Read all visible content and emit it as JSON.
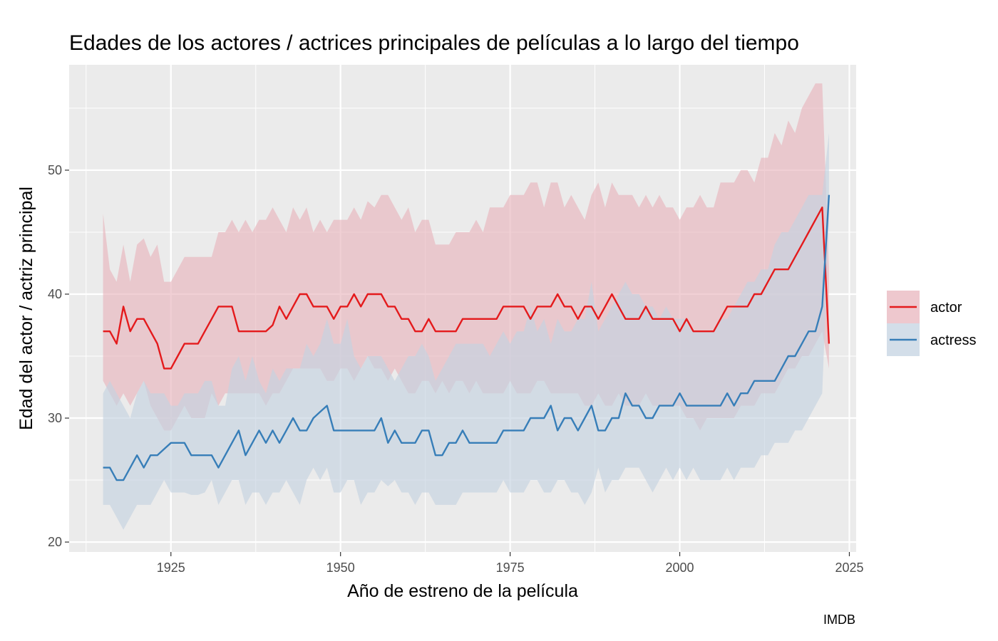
{
  "chart_data": {
    "type": "line",
    "title": "Edades de los actores / actrices principales de películas a lo largo del tiempo",
    "xlabel": "Año de estreno de la película",
    "ylabel": "Edad del actor / actriz principal",
    "caption": "IMDB",
    "xlim": [
      1910,
      2026
    ],
    "ylim": [
      19.2,
      58.5
    ],
    "x_ticks": [
      1925,
      1950,
      1975,
      2000,
      2025
    ],
    "y_ticks": [
      20,
      30,
      40,
      50
    ],
    "grid": true,
    "legend_position": "right",
    "x": [
      1915,
      1916,
      1917,
      1918,
      1919,
      1920,
      1921,
      1922,
      1923,
      1924,
      1925,
      1926,
      1927,
      1928,
      1929,
      1930,
      1931,
      1932,
      1933,
      1934,
      1935,
      1936,
      1937,
      1938,
      1939,
      1940,
      1941,
      1942,
      1943,
      1944,
      1945,
      1946,
      1947,
      1948,
      1949,
      1950,
      1951,
      1952,
      1953,
      1954,
      1955,
      1956,
      1957,
      1958,
      1959,
      1960,
      1961,
      1962,
      1963,
      1964,
      1965,
      1966,
      1967,
      1968,
      1969,
      1970,
      1971,
      1972,
      1973,
      1974,
      1975,
      1976,
      1977,
      1978,
      1979,
      1980,
      1981,
      1982,
      1983,
      1984,
      1985,
      1986,
      1987,
      1988,
      1989,
      1990,
      1991,
      1992,
      1993,
      1994,
      1995,
      1996,
      1997,
      1998,
      1999,
      2000,
      2001,
      2002,
      2003,
      2004,
      2005,
      2006,
      2007,
      2008,
      2009,
      2010,
      2011,
      2012,
      2013,
      2014,
      2015,
      2016,
      2017,
      2018,
      2019,
      2020,
      2021,
      2022
    ],
    "series": [
      {
        "name": "actor",
        "color": "#e41a1c",
        "fill": "#e8b5bd",
        "values": [
          37,
          37,
          36,
          39,
          37,
          38,
          38,
          37,
          36,
          34,
          34,
          35,
          36,
          36,
          36,
          37,
          38,
          39,
          39,
          39,
          37,
          37,
          37,
          37,
          37,
          37.5,
          39,
          38,
          39,
          40,
          40,
          39,
          39,
          39,
          38,
          39,
          39,
          40,
          39,
          40,
          40,
          40,
          39,
          39,
          38,
          38,
          37,
          37,
          38,
          37,
          37,
          37,
          37,
          38,
          38,
          38,
          38,
          38,
          38,
          39,
          39,
          39,
          39,
          38,
          39,
          39,
          39,
          40,
          39,
          39,
          38,
          39,
          39,
          38,
          39,
          40,
          39,
          38,
          38,
          38,
          39,
          38,
          38,
          38,
          38,
          37,
          38,
          37,
          37,
          37,
          37,
          38,
          39,
          39,
          39,
          39,
          40,
          40,
          41,
          42,
          42,
          42,
          43,
          44,
          45,
          46,
          47,
          36
        ],
        "lower": [
          33,
          32,
          31,
          32,
          31,
          32,
          33,
          31,
          30,
          29,
          29,
          30,
          31,
          30,
          30,
          30,
          32,
          31,
          32,
          32,
          32,
          32,
          32,
          32,
          31,
          32,
          32,
          33,
          34,
          34,
          34,
          34,
          34,
          33,
          33,
          34,
          34,
          33,
          34,
          35,
          34,
          34,
          33,
          34,
          33,
          32,
          32,
          33,
          33,
          32,
          33,
          32,
          33,
          33,
          32,
          33,
          32,
          32,
          32,
          32,
          33,
          32,
          32,
          32,
          33,
          33,
          32,
          32,
          32,
          32,
          32,
          31,
          31,
          32,
          31,
          31,
          32,
          31,
          31,
          31,
          32,
          31,
          31,
          31,
          31,
          31,
          30,
          30,
          29,
          30,
          30,
          30,
          30,
          30,
          31,
          31,
          31,
          32,
          32,
          32,
          33,
          34,
          34,
          35,
          35,
          36,
          37,
          34
        ],
        "upper": [
          46.5,
          42,
          41,
          44,
          41,
          44,
          44.5,
          43,
          44,
          41,
          41,
          42,
          43,
          43,
          43,
          43,
          43,
          45,
          45,
          46,
          45,
          46,
          45,
          46,
          46,
          47,
          46,
          45,
          47,
          46,
          47,
          45,
          46,
          45,
          46,
          46,
          46,
          47,
          46,
          47.5,
          47,
          48,
          48,
          47,
          46,
          47,
          45,
          46,
          46,
          44,
          44,
          44,
          45,
          45,
          45,
          46,
          45,
          47,
          47,
          47,
          48,
          48,
          48,
          49,
          49,
          47,
          49,
          49,
          47,
          48,
          47,
          46,
          48,
          49,
          47,
          49,
          48,
          48,
          48,
          47,
          48,
          47,
          48,
          47,
          47,
          46,
          47,
          47,
          48,
          47,
          47,
          49,
          49,
          49,
          50,
          50,
          49,
          51,
          51,
          53,
          52,
          54,
          53,
          55,
          56,
          57,
          57,
          42
        ]
      },
      {
        "name": "actress",
        "color": "#377eb8",
        "fill": "#c4d3e1",
        "values": [
          26,
          26,
          25,
          25,
          26,
          27,
          26,
          27,
          27,
          27.5,
          28,
          28,
          28,
          27,
          27,
          27,
          27,
          26,
          27,
          28,
          29,
          27,
          28,
          29,
          28,
          29,
          28,
          29,
          30,
          29,
          29,
          30,
          30.5,
          31,
          29,
          29,
          29,
          29,
          29,
          29,
          29,
          30,
          28,
          29,
          28,
          28,
          28,
          29,
          29,
          27,
          27,
          28,
          28,
          29,
          28,
          28,
          28,
          28,
          28,
          29,
          29,
          29,
          29,
          30,
          30,
          30,
          31,
          29,
          30,
          30,
          29,
          30,
          31,
          29,
          29,
          30,
          30,
          32,
          31,
          31,
          30,
          30,
          31,
          31,
          31,
          32,
          31,
          31,
          31,
          31,
          31,
          31,
          32,
          31,
          32,
          32,
          33,
          33,
          33,
          33,
          34,
          35,
          35,
          36,
          37,
          37,
          39,
          48
        ],
        "lower": [
          23,
          23,
          22,
          21,
          22,
          23,
          23,
          23,
          24,
          25,
          24,
          24,
          24,
          23.8,
          23.8,
          24,
          25,
          23,
          24,
          25,
          25,
          23,
          24,
          24,
          23,
          24,
          24,
          25,
          24,
          23,
          25,
          26,
          25,
          26,
          24,
          24,
          25,
          25,
          23,
          24,
          24,
          25,
          24.5,
          25,
          24,
          24,
          23,
          24,
          24,
          23,
          23,
          23,
          23,
          24,
          24,
          24,
          24,
          24,
          24,
          25,
          24,
          24,
          24,
          25,
          25,
          24,
          24,
          25,
          25,
          24,
          24,
          23,
          24,
          26,
          24,
          25,
          25,
          26,
          26,
          26,
          25,
          24,
          25,
          26,
          25,
          26,
          25,
          26,
          25,
          25,
          25,
          25,
          26,
          25,
          26,
          26,
          26,
          27,
          27,
          28,
          28,
          28,
          29,
          29,
          30,
          31,
          32,
          46
        ],
        "upper": [
          32,
          33,
          32,
          31,
          30,
          32,
          33,
          32,
          32,
          32,
          31,
          31,
          32,
          32,
          32,
          33,
          33,
          31,
          31,
          34,
          35,
          33,
          35,
          33,
          32,
          34,
          33,
          34,
          34,
          34,
          36,
          35,
          36,
          38,
          36,
          36,
          38,
          35,
          34,
          35,
          35,
          35,
          34,
          33,
          34,
          35,
          35,
          36,
          35,
          33,
          34,
          35,
          36,
          36,
          36,
          36,
          36,
          35,
          36,
          37,
          36,
          37,
          37,
          39,
          37,
          38,
          36,
          38,
          37,
          37,
          38,
          38,
          41,
          37,
          38,
          39,
          40,
          41,
          40,
          40,
          39,
          39,
          38,
          39,
          38,
          38,
          38,
          37,
          37,
          37,
          37,
          38,
          38,
          39,
          40,
          41,
          41,
          42,
          42,
          44,
          45,
          45,
          46,
          47,
          48,
          48,
          48,
          53
        ]
      }
    ]
  }
}
